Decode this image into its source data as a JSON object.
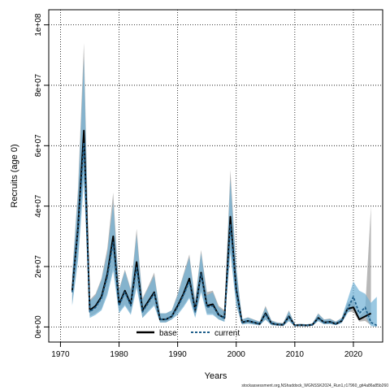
{
  "chart_data": {
    "type": "area",
    "xlabel": "Years",
    "ylabel": "Recruits (age 0)",
    "xlim": [
      1968,
      2025
    ],
    "ylim": [
      -5000000,
      105000000
    ],
    "x_ticks": [
      1970,
      1980,
      1990,
      2000,
      2010,
      2020
    ],
    "x_tick_labels": [
      "1970",
      "1980",
      "1990",
      "2000",
      "2010",
      "2020"
    ],
    "y_ticks": [
      0,
      20000000,
      40000000,
      60000000,
      80000000,
      100000000
    ],
    "y_tick_labels": [
      "0e+00",
      "2e+07",
      "4e+07",
      "6e+07",
      "8e+07",
      "1e+08"
    ],
    "grid": true,
    "legend_position": "bottom-center",
    "footnote": "stockassessment.org,NShaddock_WGNSSK2024_Run1,r17960_git4a86a85b260",
    "colors": {
      "base_band": "#a0a0a0",
      "current_band": "#6fb1d6",
      "base_line": "#000000",
      "current_line": "#1f5f8b"
    },
    "series": [
      {
        "name": "base",
        "x": [
          1972,
          1973,
          1974,
          1975,
          1976,
          1977,
          1978,
          1979,
          1980,
          1981,
          1982,
          1983,
          1984,
          1985,
          1986,
          1987,
          1988,
          1989,
          1990,
          1991,
          1992,
          1993,
          1994,
          1995,
          1996,
          1997,
          1998,
          1999,
          2000,
          2001,
          2002,
          2003,
          2004,
          2005,
          2006,
          2007,
          2008,
          2009,
          2010,
          2011,
          2012,
          2013,
          2014,
          2015,
          2016,
          2017,
          2018,
          2019,
          2020,
          2021,
          2022,
          2023
        ],
        "values": [
          12000000,
          33000000,
          65000000,
          5500000,
          7000000,
          10000000,
          17500000,
          30000000,
          7500000,
          12000000,
          7500000,
          21500000,
          5500000,
          8500000,
          11500000,
          2500000,
          2500000,
          3500000,
          7000000,
          11000000,
          16000000,
          5500000,
          18000000,
          7000000,
          7500000,
          4000000,
          3000000,
          36500000,
          12500000,
          1500000,
          2000000,
          1500000,
          1000000,
          4500000,
          1200000,
          800000,
          700000,
          3500000,
          500000,
          600000,
          500000,
          700000,
          3000000,
          1500000,
          1700000,
          1000000,
          2000000,
          6000000,
          6500000,
          2500000,
          3500000,
          4500000
        ],
        "lower": [
          7500000,
          23000000,
          52000000,
          3500000,
          4500000,
          6000000,
          11500000,
          20000000,
          5000000,
          7500000,
          4500000,
          14000000,
          3000000,
          5500000,
          7500000,
          1500000,
          1500000,
          2500000,
          4500000,
          7000000,
          10000000,
          3500000,
          12000000,
          4500000,
          4500000,
          2500000,
          1800000,
          26000000,
          7500000,
          800000,
          1200000,
          800000,
          500000,
          2500000,
          600000,
          400000,
          300000,
          2000000,
          200000,
          300000,
          200000,
          400000,
          2000000,
          900000,
          1000000,
          600000,
          1400000,
          5000000,
          5000000,
          1800000,
          2000000,
          600000
        ],
        "upper": [
          17500000,
          46000000,
          94000000,
          9000000,
          11000000,
          16000000,
          26000000,
          44500000,
          12500000,
          19000000,
          12500000,
          32500000,
          9500000,
          13500000,
          18000000,
          4500000,
          4500000,
          5500000,
          11000000,
          17500000,
          24000000,
          9000000,
          25500000,
          11500000,
          12000000,
          7000000,
          5500000,
          52000000,
          20000000,
          2500000,
          3200000,
          2500000,
          1800000,
          7000000,
          2200000,
          1500000,
          1300000,
          5500000,
          900000,
          1100000,
          900000,
          1200000,
          4500000,
          2500000,
          2800000,
          1800000,
          3000000,
          8000000,
          9000000,
          3500000,
          5500000,
          40000000
        ]
      },
      {
        "name": "current",
        "x": [
          1972,
          1973,
          1974,
          1975,
          1976,
          1977,
          1978,
          1979,
          1980,
          1981,
          1982,
          1983,
          1984,
          1985,
          1986,
          1987,
          1988,
          1989,
          1990,
          1991,
          1992,
          1993,
          1994,
          1995,
          1996,
          1997,
          1998,
          1999,
          2000,
          2001,
          2002,
          2003,
          2004,
          2005,
          2006,
          2007,
          2008,
          2009,
          2010,
          2011,
          2012,
          2013,
          2014,
          2015,
          2016,
          2017,
          2018,
          2019,
          2020,
          2021,
          2022,
          2023,
          2024
        ],
        "values": [
          11500000,
          32000000,
          61000000,
          5000000,
          6500000,
          9500000,
          16500000,
          28000000,
          7000000,
          11500000,
          7000000,
          20000000,
          5000000,
          8000000,
          11000000,
          2500000,
          2500000,
          3500000,
          6500000,
          10500000,
          15000000,
          5000000,
          17500000,
          6500000,
          7000000,
          4000000,
          2800000,
          34000000,
          12000000,
          1500000,
          2000000,
          1500000,
          1000000,
          4200000,
          1200000,
          800000,
          700000,
          3300000,
          500000,
          600000,
          500000,
          700000,
          2900000,
          1500000,
          1600000,
          1000000,
          2000000,
          6000000,
          10000000,
          4500000,
          6500000,
          1500000,
          500000
        ],
        "lower": [
          7000000,
          22000000,
          48000000,
          3000000,
          4000000,
          5500000,
          10500000,
          18500000,
          4500000,
          7000000,
          4000000,
          13000000,
          3000000,
          5000000,
          7000000,
          1500000,
          1500000,
          2500000,
          4000000,
          6500000,
          9500000,
          3000000,
          11500000,
          4000000,
          4000000,
          2500000,
          1700000,
          24500000,
          7000000,
          800000,
          1100000,
          800000,
          500000,
          2400000,
          600000,
          400000,
          300000,
          1900000,
          200000,
          300000,
          200000,
          400000,
          1900000,
          900000,
          1000000,
          600000,
          1300000,
          4500000,
          6500000,
          2800000,
          3500000,
          300000,
          50000
        ],
        "upper": [
          17000000,
          44000000,
          89000000,
          8500000,
          10500000,
          15500000,
          24500000,
          41000000,
          12000000,
          18500000,
          12000000,
          30500000,
          9000000,
          13000000,
          17000000,
          4500000,
          4500000,
          5500000,
          10500000,
          17000000,
          23000000,
          8500000,
          24500000,
          10500000,
          11500000,
          6500000,
          5000000,
          49000000,
          19500000,
          2500000,
          3100000,
          2400000,
          1700000,
          6500000,
          2100000,
          1400000,
          1200000,
          5200000,
          900000,
          1000000,
          900000,
          1200000,
          4300000,
          2400000,
          2600000,
          1700000,
          3000000,
          9000000,
          15000000,
          12000000,
          11000000,
          8000000,
          10000000
        ]
      }
    ]
  }
}
